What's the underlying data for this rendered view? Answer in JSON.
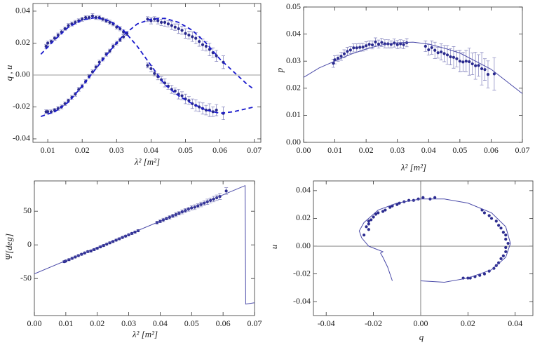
{
  "chart_data": [
    {
      "type": "scatter",
      "x_label": "λ² [m²]",
      "y_label": "q , u",
      "zero_line": true,
      "xlim": [
        0.0057,
        0.0719
      ],
      "xticks": [
        0.01,
        0.02,
        0.03,
        0.04,
        0.05,
        0.06,
        0.07
      ],
      "ylim": [
        -0.0422,
        0.0448
      ],
      "yticks": [
        -0.04,
        -0.02,
        {
          "value": 0,
          "label": "0.00"
        },
        0.02,
        0.04
      ],
      "series": [
        {
          "style": "points",
          "color": "#2b2b8f",
          "x": [
            0.0095,
            0.01,
            0.011,
            0.012,
            0.013,
            0.014,
            0.015,
            0.016,
            0.017,
            0.018,
            0.019,
            0.02,
            0.021,
            0.022,
            0.023,
            0.024,
            0.025,
            0.026,
            0.027,
            0.028,
            0.029,
            0.03,
            0.031,
            0.032,
            0.033,
            0.039,
            0.04,
            0.041,
            0.042,
            0.043,
            0.044,
            0.045,
            0.046,
            0.047,
            0.048,
            0.049,
            0.05,
            0.051,
            0.052,
            0.053,
            0.054,
            0.055,
            0.056,
            0.057,
            0.058,
            0.059,
            0.061
          ],
          "values": [
            0.018,
            0.02,
            0.021,
            0.023,
            0.025,
            0.027,
            0.029,
            0.031,
            0.032,
            0.033,
            0.034,
            0.035,
            0.036,
            0.036,
            0.037,
            0.036,
            0.036,
            0.035,
            0.034,
            0.033,
            0.032,
            0.03,
            0.029,
            0.027,
            0.026,
            0.006,
            0.004,
            0.001,
            -0.001,
            -0.003,
            -0.005,
            -0.007,
            -0.009,
            -0.01,
            -0.012,
            -0.013,
            -0.015,
            -0.016,
            -0.018,
            -0.019,
            -0.02,
            -0.021,
            -0.022,
            -0.022,
            -0.023,
            -0.022,
            -0.024
          ],
          "errors": [
            0.0012,
            0.0012,
            0.001,
            0.0012,
            0.0013,
            0.0012,
            0.001,
            0.0012,
            0.0013,
            0.0012,
            0.0012,
            0.0013,
            0.0012,
            0.0012,
            0.0015,
            0.0012,
            0.0013,
            0.0012,
            0.0012,
            0.0013,
            0.0012,
            0.0012,
            0.0013,
            0.0012,
            0.0012,
            0.0015,
            0.002,
            0.0015,
            0.002,
            0.002,
            0.0025,
            0.002,
            0.0025,
            0.002,
            0.003,
            0.0025,
            0.003,
            0.0025,
            0.003,
            0.0035,
            0.003,
            0.0035,
            0.003,
            0.004,
            0.003,
            0.0035,
            0.004
          ]
        },
        {
          "style": "points",
          "color": "#2b2b8f",
          "x": [
            0.0095,
            0.01,
            0.011,
            0.012,
            0.013,
            0.014,
            0.015,
            0.016,
            0.017,
            0.018,
            0.019,
            0.02,
            0.021,
            0.022,
            0.023,
            0.024,
            0.025,
            0.026,
            0.027,
            0.028,
            0.029,
            0.03,
            0.031,
            0.032,
            0.033,
            0.039,
            0.04,
            0.041,
            0.042,
            0.043,
            0.044,
            0.045,
            0.046,
            0.047,
            0.048,
            0.049,
            0.05,
            0.051,
            0.052,
            0.053,
            0.054,
            0.055,
            0.056,
            0.057,
            0.058,
            0.059,
            0.061
          ],
          "values": [
            -0.023,
            -0.023,
            -0.023,
            -0.022,
            -0.021,
            -0.02,
            -0.018,
            -0.016,
            -0.014,
            -0.012,
            -0.009,
            -0.007,
            -0.004,
            -0.001,
            0.002,
            0.005,
            0.008,
            0.01,
            0.013,
            0.015,
            0.018,
            0.02,
            0.022,
            0.024,
            0.026,
            0.035,
            0.034,
            0.035,
            0.034,
            0.033,
            0.033,
            0.032,
            0.031,
            0.03,
            0.029,
            0.028,
            0.026,
            0.025,
            0.024,
            0.023,
            0.021,
            0.019,
            0.018,
            0.016,
            0.014,
            0.012,
            0.008
          ],
          "errors": [
            0.0012,
            0.001,
            0.0012,
            0.0012,
            0.0013,
            0.0012,
            0.0012,
            0.001,
            0.0012,
            0.0013,
            0.0012,
            0.0012,
            0.0012,
            0.0013,
            0.0012,
            0.0012,
            0.0013,
            0.0012,
            0.0012,
            0.0012,
            0.0013,
            0.0012,
            0.0012,
            0.0013,
            0.0012,
            0.0015,
            0.002,
            0.0015,
            0.002,
            0.002,
            0.0025,
            0.002,
            0.0025,
            0.002,
            0.003,
            0.0025,
            0.003,
            0.0025,
            0.003,
            0.0035,
            0.003,
            0.0035,
            0.003,
            0.004,
            0.003,
            0.0035,
            0.004
          ]
        },
        {
          "style": "dashed",
          "color": "#1a1acc",
          "x": [
            0.008,
            0.012,
            0.016,
            0.02,
            0.024,
            0.028,
            0.032,
            0.036,
            0.04,
            0.044,
            0.048,
            0.052,
            0.056,
            0.06,
            0.064,
            0.068,
            0.07
          ],
          "values": [
            0.013,
            0.022,
            0.03,
            0.0345,
            0.036,
            0.034,
            0.028,
            0.018,
            0.006,
            -0.006,
            -0.013,
            -0.018,
            -0.022,
            -0.024,
            -0.023,
            -0.021,
            -0.02
          ]
        },
        {
          "style": "dashed",
          "color": "#1a1acc",
          "x": [
            0.008,
            0.012,
            0.016,
            0.02,
            0.024,
            0.028,
            0.032,
            0.036,
            0.04,
            0.044,
            0.048,
            0.052,
            0.056,
            0.06,
            0.064,
            0.068,
            0.07
          ],
          "values": [
            -0.026,
            -0.023,
            -0.017,
            -0.007,
            0.004,
            0.015,
            0.025,
            0.032,
            0.035,
            0.0355,
            0.033,
            0.028,
            0.02,
            0.01,
            0.002,
            -0.006,
            -0.009
          ]
        }
      ]
    },
    {
      "type": "scatter",
      "x_label": "λ² [m²]",
      "y_label": "p",
      "xlim": [
        0,
        0.07
      ],
      "xticks": [
        {
          "value": 0,
          "label": "0.00"
        },
        0.01,
        0.02,
        0.03,
        0.04,
        0.05,
        0.06,
        0.07
      ],
      "ylim": [
        0,
        0.05
      ],
      "yticks": [
        {
          "value": 0,
          "label": "0.00"
        },
        0.01,
        0.02,
        0.03,
        0.04,
        0.05
      ],
      "series": [
        {
          "style": "points",
          "color": "#2b2b8f",
          "x": [
            0.0095,
            0.01,
            0.011,
            0.012,
            0.013,
            0.014,
            0.015,
            0.016,
            0.017,
            0.018,
            0.019,
            0.02,
            0.021,
            0.022,
            0.023,
            0.024,
            0.025,
            0.026,
            0.027,
            0.028,
            0.029,
            0.03,
            0.031,
            0.032,
            0.033,
            0.039,
            0.04,
            0.041,
            0.042,
            0.043,
            0.044,
            0.045,
            0.046,
            0.047,
            0.048,
            0.049,
            0.05,
            0.051,
            0.052,
            0.053,
            0.054,
            0.055,
            0.056,
            0.057,
            0.058,
            0.059,
            0.061
          ],
          "values": [
            0.0292,
            0.0305,
            0.0311,
            0.0318,
            0.0327,
            0.0336,
            0.0341,
            0.0349,
            0.0349,
            0.0351,
            0.0352,
            0.0357,
            0.0362,
            0.036,
            0.0371,
            0.0363,
            0.0369,
            0.0364,
            0.0364,
            0.0362,
            0.0367,
            0.0361,
            0.0364,
            0.0361,
            0.0368,
            0.0355,
            0.0342,
            0.035,
            0.034,
            0.0331,
            0.0334,
            0.0328,
            0.0323,
            0.0316,
            0.0314,
            0.0309,
            0.03,
            0.0297,
            0.03,
            0.0298,
            0.029,
            0.0283,
            0.0284,
            0.0272,
            0.0269,
            0.0251,
            0.0253
          ],
          "errors": [
            0.0015,
            0.0015,
            0.0012,
            0.0015,
            0.0015,
            0.0015,
            0.0013,
            0.0015,
            0.0015,
            0.0015,
            0.0015,
            0.0015,
            0.0013,
            0.0015,
            0.0015,
            0.0015,
            0.0015,
            0.0015,
            0.0015,
            0.0013,
            0.0015,
            0.0015,
            0.0015,
            0.0015,
            0.0015,
            0.002,
            0.002,
            0.0025,
            0.003,
            0.002,
            0.003,
            0.003,
            0.0035,
            0.003,
            0.004,
            0.003,
            0.004,
            0.0035,
            0.004,
            0.005,
            0.004,
            0.005,
            0.004,
            0.006,
            0.004,
            0.005,
            0.006
          ]
        },
        {
          "style": "line",
          "color": "#4a4aa8",
          "x": [
            0,
            0.005,
            0.01,
            0.015,
            0.02,
            0.025,
            0.03,
            0.035,
            0.04,
            0.045,
            0.05,
            0.055,
            0.06,
            0.065,
            0.07
          ],
          "values": [
            0.024,
            0.0275,
            0.03,
            0.0325,
            0.0345,
            0.036,
            0.0368,
            0.037,
            0.0363,
            0.0348,
            0.033,
            0.03,
            0.027,
            0.0225,
            0.018
          ]
        }
      ]
    },
    {
      "type": "scatter",
      "x_label": "λ² [m²]",
      "y_label": "Ψ[deg]",
      "xlim": [
        0,
        0.07
      ],
      "xticks": [
        {
          "value": 0,
          "label": "0.00"
        },
        0.01,
        0.02,
        0.03,
        0.04,
        0.05,
        0.06,
        0.07
      ],
      "ylim": [
        -105,
        95
      ],
      "yticks": [
        -50,
        0,
        50
      ],
      "series": [
        {
          "style": "points",
          "color": "#2b2b8f",
          "x": [
            0.0095,
            0.01,
            0.011,
            0.012,
            0.013,
            0.014,
            0.015,
            0.016,
            0.017,
            0.018,
            0.019,
            0.02,
            0.021,
            0.022,
            0.023,
            0.024,
            0.025,
            0.026,
            0.027,
            0.028,
            0.029,
            0.03,
            0.031,
            0.032,
            0.033,
            0.039,
            0.04,
            0.041,
            0.042,
            0.043,
            0.044,
            0.045,
            0.046,
            0.047,
            0.048,
            0.049,
            0.05,
            0.051,
            0.052,
            0.053,
            0.054,
            0.055,
            0.056,
            0.057,
            0.058,
            0.059,
            0.061
          ],
          "values": [
            -25,
            -24,
            -22,
            -20,
            -18,
            -16,
            -14,
            -12,
            -10,
            -9,
            -7,
            -5,
            -3,
            -1,
            1,
            3,
            5,
            7,
            9,
            11,
            13,
            15,
            17,
            19,
            21,
            33,
            35,
            37,
            39,
            41,
            43,
            45,
            47,
            49,
            51,
            53,
            55,
            56,
            58,
            60,
            62,
            64,
            66,
            68,
            70,
            72,
            80
          ],
          "errors": [
            1.5,
            1.5,
            1.5,
            1.5,
            1.5,
            1.5,
            1.5,
            1.5,
            1.5,
            1.5,
            1.5,
            1.5,
            1.5,
            1.5,
            1.5,
            1.5,
            1.5,
            1.5,
            1.5,
            1.5,
            1.5,
            1.5,
            1.5,
            1.5,
            1.5,
            2,
            2,
            2.5,
            2,
            2.5,
            2.5,
            3,
            2.5,
            3,
            3,
            3,
            3,
            3.5,
            3,
            3.5,
            3.5,
            4,
            3.5,
            4,
            4,
            4.5,
            5
          ]
        },
        {
          "style": "line",
          "color": "#4a4aa8",
          "x": [
            0,
            0.067,
            0.0672,
            0.07
          ],
          "values": [
            -43,
            88,
            -88,
            -86
          ]
        }
      ]
    },
    {
      "type": "scatter",
      "x_label": "q",
      "y_label": "u",
      "axes_at_origin": true,
      "xlim": [
        -0.0454,
        0.0475
      ],
      "xticks": [
        -0.04,
        -0.02,
        {
          "value": 0,
          "label": "0.00"
        },
        0.02,
        0.04
      ],
      "ylim": [
        -0.05,
        0.047
      ],
      "yticks": [
        -0.04,
        -0.02,
        {
          "value": 0,
          "label": "0.00"
        },
        0.02,
        0.04
      ],
      "series": [
        {
          "style": "points",
          "color": "#2b2b8f",
          "x": [
            0.018,
            0.02,
            0.021,
            0.023,
            0.025,
            0.027,
            0.029,
            0.031,
            0.032,
            0.033,
            0.034,
            0.035,
            0.036,
            0.036,
            0.037,
            0.036,
            0.036,
            0.035,
            0.034,
            0.033,
            0.032,
            0.03,
            0.029,
            0.027,
            0.026,
            0.006,
            0.004,
            0.001,
            -0.001,
            -0.003,
            -0.005,
            -0.007,
            -0.009,
            -0.01,
            -0.012,
            -0.013,
            -0.015,
            -0.016,
            -0.018,
            -0.019,
            -0.02,
            -0.021,
            -0.022,
            -0.022,
            -0.023,
            -0.022,
            -0.024
          ],
          "values": [
            -0.023,
            -0.023,
            -0.023,
            -0.022,
            -0.021,
            -0.02,
            -0.018,
            -0.016,
            -0.014,
            -0.012,
            -0.009,
            -0.007,
            -0.004,
            -0.001,
            0.002,
            0.005,
            0.008,
            0.01,
            0.013,
            0.015,
            0.018,
            0.02,
            0.022,
            0.024,
            0.026,
            0.035,
            0.034,
            0.035,
            0.034,
            0.033,
            0.033,
            0.032,
            0.031,
            0.03,
            0.029,
            0.028,
            0.026,
            0.025,
            0.024,
            0.023,
            0.021,
            0.019,
            0.018,
            0.016,
            0.014,
            0.012,
            0.008
          ]
        },
        {
          "style": "line",
          "color": "#4a4aa8",
          "x": [
            -0.012,
            -0.014,
            -0.016,
            -0.017,
            -0.016,
            -0.019,
            -0.022,
            -0.025,
            -0.026,
            -0.024,
            -0.018,
            -0.01,
            0,
            0.01,
            0.02,
            0.03,
            0.036,
            0.038,
            0.036,
            0.03,
            0.02,
            0.01,
            0
          ],
          "values": [
            -0.025,
            -0.015,
            -0.008,
            -0.005,
            -0.004,
            -0.002,
            0,
            0.006,
            0.011,
            0.017,
            0.026,
            0.031,
            0.034,
            0.034,
            0.031,
            0.024,
            0.014,
            0.002,
            -0.008,
            -0.017,
            -0.023,
            -0.026,
            -0.025
          ]
        }
      ]
    }
  ]
}
